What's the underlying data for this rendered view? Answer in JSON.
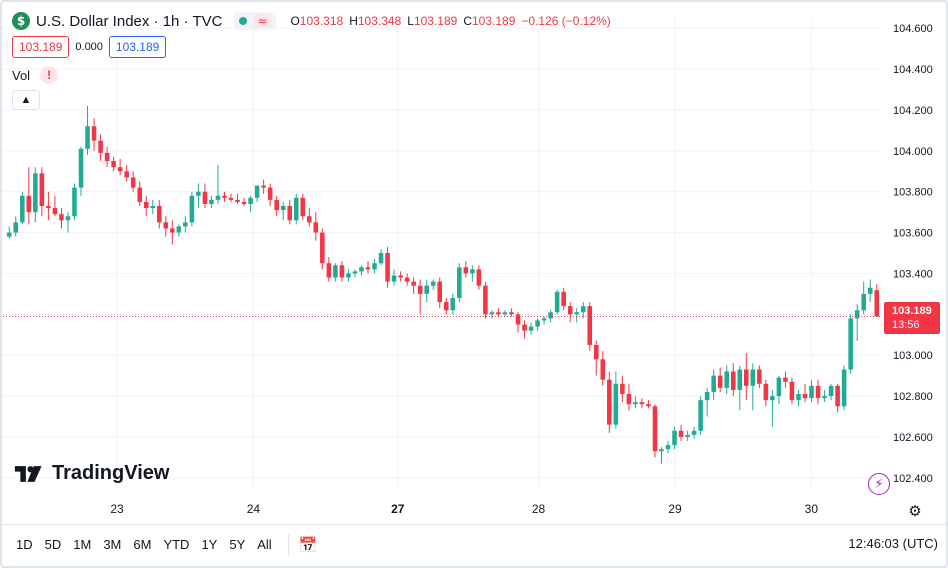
{
  "header": {
    "symbol_icon": "dollar-icon",
    "symbol_letter": "$",
    "title": "U.S. Dollar Index · 1h · TVC",
    "o_label": "O",
    "o_value": "103.318",
    "h_label": "H",
    "h_value": "103.348",
    "l_label": "L",
    "l_value": "103.189",
    "c_label": "C",
    "c_value": "103.189",
    "change": "−0.126 (−0.12%)"
  },
  "quote": {
    "bid": "103.189",
    "spread": "0.000",
    "ask": "103.189"
  },
  "volume": {
    "label": "Vol",
    "warning": "!"
  },
  "last_price": {
    "value": "103.189",
    "countdown": "13:56"
  },
  "brand": {
    "name": "TradingView"
  },
  "toolbar": {
    "ranges": [
      "1D",
      "5D",
      "1M",
      "3M",
      "6M",
      "YTD",
      "1Y",
      "5Y",
      "All"
    ],
    "clock": "12:46:03 (UTC)"
  },
  "colors": {
    "up": "#22ab94",
    "down": "#f23645",
    "grid": "#f0f3fa",
    "text": "#131722"
  },
  "chart_data": {
    "type": "candlestick",
    "x_ticks": [
      "23",
      "24",
      "27",
      "28",
      "29",
      "30"
    ],
    "y_ticks": [
      "102.400",
      "102.600",
      "102.800",
      "103.000",
      "103.200",
      "103.400",
      "103.600",
      "103.800",
      "104.000",
      "104.200",
      "104.400",
      "104.600"
    ],
    "ylim": [
      102.35,
      104.65
    ],
    "grid": true,
    "last_price_line": 103.189,
    "candles": [
      {
        "o": 103.58,
        "h": 103.63,
        "l": 103.57,
        "c": 103.6
      },
      {
        "o": 103.6,
        "h": 103.68,
        "l": 103.58,
        "c": 103.65
      },
      {
        "o": 103.65,
        "h": 103.8,
        "l": 103.64,
        "c": 103.78
      },
      {
        "o": 103.78,
        "h": 103.92,
        "l": 103.64,
        "c": 103.7
      },
      {
        "o": 103.7,
        "h": 103.92,
        "l": 103.65,
        "c": 103.89
      },
      {
        "o": 103.89,
        "h": 103.92,
        "l": 103.68,
        "c": 103.73
      },
      {
        "o": 103.73,
        "h": 103.8,
        "l": 103.66,
        "c": 103.72
      },
      {
        "o": 103.72,
        "h": 103.78,
        "l": 103.68,
        "c": 103.69
      },
      {
        "o": 103.69,
        "h": 103.72,
        "l": 103.62,
        "c": 103.66
      },
      {
        "o": 103.66,
        "h": 103.7,
        "l": 103.6,
        "c": 103.68
      },
      {
        "o": 103.68,
        "h": 103.84,
        "l": 103.66,
        "c": 103.82
      },
      {
        "o": 103.82,
        "h": 104.02,
        "l": 103.78,
        "c": 104.01
      },
      {
        "o": 104.01,
        "h": 104.22,
        "l": 103.98,
        "c": 104.12
      },
      {
        "o": 104.12,
        "h": 104.16,
        "l": 104.0,
        "c": 104.05
      },
      {
        "o": 104.05,
        "h": 104.08,
        "l": 103.95,
        "c": 103.99
      },
      {
        "o": 103.99,
        "h": 104.02,
        "l": 103.92,
        "c": 103.95
      },
      {
        "o": 103.95,
        "h": 103.97,
        "l": 103.9,
        "c": 103.92
      },
      {
        "o": 103.92,
        "h": 103.96,
        "l": 103.88,
        "c": 103.9
      },
      {
        "o": 103.9,
        "h": 103.93,
        "l": 103.85,
        "c": 103.87
      },
      {
        "o": 103.87,
        "h": 103.9,
        "l": 103.8,
        "c": 103.82
      },
      {
        "o": 103.82,
        "h": 103.85,
        "l": 103.73,
        "c": 103.75
      },
      {
        "o": 103.75,
        "h": 103.78,
        "l": 103.68,
        "c": 103.72
      },
      {
        "o": 103.72,
        "h": 103.76,
        "l": 103.69,
        "c": 103.73
      },
      {
        "o": 103.73,
        "h": 103.76,
        "l": 103.62,
        "c": 103.65
      },
      {
        "o": 103.65,
        "h": 103.68,
        "l": 103.58,
        "c": 103.62
      },
      {
        "o": 103.62,
        "h": 103.66,
        "l": 103.54,
        "c": 103.6
      },
      {
        "o": 103.6,
        "h": 103.64,
        "l": 103.58,
        "c": 103.63
      },
      {
        "o": 103.63,
        "h": 103.68,
        "l": 103.6,
        "c": 103.65
      },
      {
        "o": 103.65,
        "h": 103.8,
        "l": 103.63,
        "c": 103.78
      },
      {
        "o": 103.78,
        "h": 103.84,
        "l": 103.72,
        "c": 103.8
      },
      {
        "o": 103.8,
        "h": 103.84,
        "l": 103.72,
        "c": 103.74
      },
      {
        "o": 103.74,
        "h": 103.78,
        "l": 103.72,
        "c": 103.76
      },
      {
        "o": 103.76,
        "h": 103.93,
        "l": 103.74,
        "c": 103.78
      },
      {
        "o": 103.78,
        "h": 103.8,
        "l": 103.75,
        "c": 103.77
      },
      {
        "o": 103.77,
        "h": 103.79,
        "l": 103.75,
        "c": 103.76
      },
      {
        "o": 103.76,
        "h": 103.79,
        "l": 103.74,
        "c": 103.75
      },
      {
        "o": 103.75,
        "h": 103.77,
        "l": 103.73,
        "c": 103.74
      },
      {
        "o": 103.74,
        "h": 103.78,
        "l": 103.7,
        "c": 103.77
      },
      {
        "o": 103.77,
        "h": 103.82,
        "l": 103.75,
        "c": 103.83
      },
      {
        "o": 103.83,
        "h": 103.86,
        "l": 103.79,
        "c": 103.82
      },
      {
        "o": 103.82,
        "h": 103.84,
        "l": 103.73,
        "c": 103.76
      },
      {
        "o": 103.76,
        "h": 103.78,
        "l": 103.68,
        "c": 103.71
      },
      {
        "o": 103.71,
        "h": 103.75,
        "l": 103.66,
        "c": 103.73
      },
      {
        "o": 103.73,
        "h": 103.76,
        "l": 103.64,
        "c": 103.66
      },
      {
        "o": 103.66,
        "h": 103.79,
        "l": 103.64,
        "c": 103.77
      },
      {
        "o": 103.77,
        "h": 103.79,
        "l": 103.66,
        "c": 103.68
      },
      {
        "o": 103.68,
        "h": 103.72,
        "l": 103.63,
        "c": 103.65
      },
      {
        "o": 103.65,
        "h": 103.7,
        "l": 103.56,
        "c": 103.6
      },
      {
        "o": 103.6,
        "h": 103.62,
        "l": 103.42,
        "c": 103.45
      },
      {
        "o": 103.45,
        "h": 103.48,
        "l": 103.36,
        "c": 103.38
      },
      {
        "o": 103.38,
        "h": 103.45,
        "l": 103.36,
        "c": 103.44
      },
      {
        "o": 103.44,
        "h": 103.46,
        "l": 103.36,
        "c": 103.38
      },
      {
        "o": 103.38,
        "h": 103.42,
        "l": 103.36,
        "c": 103.4
      },
      {
        "o": 103.4,
        "h": 103.42,
        "l": 103.38,
        "c": 103.41
      },
      {
        "o": 103.41,
        "h": 103.44,
        "l": 103.39,
        "c": 103.43
      },
      {
        "o": 103.43,
        "h": 103.46,
        "l": 103.4,
        "c": 103.42
      },
      {
        "o": 103.42,
        "h": 103.47,
        "l": 103.4,
        "c": 103.45
      },
      {
        "o": 103.45,
        "h": 103.52,
        "l": 103.44,
        "c": 103.5
      },
      {
        "o": 103.5,
        "h": 103.53,
        "l": 103.33,
        "c": 103.36
      },
      {
        "o": 103.36,
        "h": 103.42,
        "l": 103.34,
        "c": 103.39
      },
      {
        "o": 103.39,
        "h": 103.41,
        "l": 103.36,
        "c": 103.38
      },
      {
        "o": 103.38,
        "h": 103.4,
        "l": 103.34,
        "c": 103.36
      },
      {
        "o": 103.36,
        "h": 103.38,
        "l": 103.3,
        "c": 103.34
      },
      {
        "o": 103.34,
        "h": 103.37,
        "l": 103.2,
        "c": 103.3
      },
      {
        "o": 103.3,
        "h": 103.37,
        "l": 103.26,
        "c": 103.34
      },
      {
        "o": 103.34,
        "h": 103.37,
        "l": 103.32,
        "c": 103.36
      },
      {
        "o": 103.36,
        "h": 103.38,
        "l": 103.23,
        "c": 103.26
      },
      {
        "o": 103.26,
        "h": 103.28,
        "l": 103.2,
        "c": 103.22
      },
      {
        "o": 103.22,
        "h": 103.3,
        "l": 103.2,
        "c": 103.28
      },
      {
        "o": 103.28,
        "h": 103.45,
        "l": 103.26,
        "c": 103.43
      },
      {
        "o": 103.43,
        "h": 103.46,
        "l": 103.38,
        "c": 103.4
      },
      {
        "o": 103.4,
        "h": 103.44,
        "l": 103.36,
        "c": 103.42
      },
      {
        "o": 103.42,
        "h": 103.44,
        "l": 103.32,
        "c": 103.34
      },
      {
        "o": 103.34,
        "h": 103.36,
        "l": 103.18,
        "c": 103.2
      },
      {
        "o": 103.2,
        "h": 103.22,
        "l": 103.18,
        "c": 103.21
      },
      {
        "o": 103.21,
        "h": 103.23,
        "l": 103.19,
        "c": 103.2
      },
      {
        "o": 103.2,
        "h": 103.22,
        "l": 103.19,
        "c": 103.21
      },
      {
        "o": 103.21,
        "h": 103.23,
        "l": 103.19,
        "c": 103.2
      },
      {
        "o": 103.2,
        "h": 103.21,
        "l": 103.11,
        "c": 103.15
      },
      {
        "o": 103.15,
        "h": 103.17,
        "l": 103.08,
        "c": 103.12
      },
      {
        "o": 103.12,
        "h": 103.16,
        "l": 103.1,
        "c": 103.14
      },
      {
        "o": 103.14,
        "h": 103.18,
        "l": 103.12,
        "c": 103.17
      },
      {
        "o": 103.17,
        "h": 103.19,
        "l": 103.15,
        "c": 103.18
      },
      {
        "o": 103.18,
        "h": 103.22,
        "l": 103.16,
        "c": 103.21
      },
      {
        "o": 103.21,
        "h": 103.32,
        "l": 103.2,
        "c": 103.31
      },
      {
        "o": 103.31,
        "h": 103.33,
        "l": 103.22,
        "c": 103.24
      },
      {
        "o": 103.24,
        "h": 103.26,
        "l": 103.16,
        "c": 103.2
      },
      {
        "o": 103.2,
        "h": 103.23,
        "l": 103.16,
        "c": 103.21
      },
      {
        "o": 103.21,
        "h": 103.26,
        "l": 103.18,
        "c": 103.24
      },
      {
        "o": 103.24,
        "h": 103.26,
        "l": 103.02,
        "c": 103.05
      },
      {
        "o": 103.05,
        "h": 103.07,
        "l": 102.9,
        "c": 102.98
      },
      {
        "o": 102.98,
        "h": 103.02,
        "l": 102.85,
        "c": 102.88
      },
      {
        "o": 102.88,
        "h": 102.92,
        "l": 102.62,
        "c": 102.66
      },
      {
        "o": 102.66,
        "h": 102.92,
        "l": 102.64,
        "c": 102.86
      },
      {
        "o": 102.86,
        "h": 102.9,
        "l": 102.77,
        "c": 102.81
      },
      {
        "o": 102.81,
        "h": 102.86,
        "l": 102.73,
        "c": 102.76
      },
      {
        "o": 102.76,
        "h": 102.8,
        "l": 102.74,
        "c": 102.77
      },
      {
        "o": 102.77,
        "h": 102.79,
        "l": 102.74,
        "c": 102.76
      },
      {
        "o": 102.76,
        "h": 102.78,
        "l": 102.74,
        "c": 102.75
      },
      {
        "o": 102.75,
        "h": 102.76,
        "l": 102.5,
        "c": 102.53
      },
      {
        "o": 102.53,
        "h": 102.55,
        "l": 102.47,
        "c": 102.54
      },
      {
        "o": 102.54,
        "h": 102.58,
        "l": 102.52,
        "c": 102.56
      },
      {
        "o": 102.56,
        "h": 102.65,
        "l": 102.54,
        "c": 102.63
      },
      {
        "o": 102.63,
        "h": 102.66,
        "l": 102.58,
        "c": 102.6
      },
      {
        "o": 102.6,
        "h": 102.63,
        "l": 102.58,
        "c": 102.61
      },
      {
        "o": 102.61,
        "h": 102.65,
        "l": 102.59,
        "c": 102.63
      },
      {
        "o": 102.63,
        "h": 102.8,
        "l": 102.61,
        "c": 102.78
      },
      {
        "o": 102.78,
        "h": 102.84,
        "l": 102.7,
        "c": 102.82
      },
      {
        "o": 102.82,
        "h": 102.93,
        "l": 102.78,
        "c": 102.9
      },
      {
        "o": 102.9,
        "h": 102.94,
        "l": 102.82,
        "c": 102.84
      },
      {
        "o": 102.84,
        "h": 102.95,
        "l": 102.81,
        "c": 102.92
      },
      {
        "o": 102.92,
        "h": 102.96,
        "l": 102.8,
        "c": 102.83
      },
      {
        "o": 102.83,
        "h": 102.95,
        "l": 102.73,
        "c": 102.93
      },
      {
        "o": 102.93,
        "h": 103.01,
        "l": 102.78,
        "c": 102.85
      },
      {
        "o": 102.85,
        "h": 102.96,
        "l": 102.73,
        "c": 102.93
      },
      {
        "o": 102.93,
        "h": 102.95,
        "l": 102.84,
        "c": 102.86
      },
      {
        "o": 102.86,
        "h": 102.88,
        "l": 102.75,
        "c": 102.78
      },
      {
        "o": 102.78,
        "h": 102.83,
        "l": 102.65,
        "c": 102.8
      },
      {
        "o": 102.8,
        "h": 102.9,
        "l": 102.76,
        "c": 102.89
      },
      {
        "o": 102.89,
        "h": 102.92,
        "l": 102.84,
        "c": 102.87
      },
      {
        "o": 102.87,
        "h": 102.89,
        "l": 102.76,
        "c": 102.78
      },
      {
        "o": 102.78,
        "h": 102.83,
        "l": 102.75,
        "c": 102.81
      },
      {
        "o": 102.81,
        "h": 102.86,
        "l": 102.77,
        "c": 102.79
      },
      {
        "o": 102.79,
        "h": 102.88,
        "l": 102.77,
        "c": 102.85
      },
      {
        "o": 102.85,
        "h": 102.88,
        "l": 102.76,
        "c": 102.79
      },
      {
        "o": 102.79,
        "h": 102.83,
        "l": 102.77,
        "c": 102.8
      },
      {
        "o": 102.8,
        "h": 102.86,
        "l": 102.78,
        "c": 102.85
      },
      {
        "o": 102.85,
        "h": 102.86,
        "l": 102.72,
        "c": 102.75
      },
      {
        "o": 102.75,
        "h": 102.95,
        "l": 102.73,
        "c": 102.93
      },
      {
        "o": 102.93,
        "h": 103.2,
        "l": 102.91,
        "c": 103.18
      },
      {
        "o": 103.18,
        "h": 103.25,
        "l": 103.07,
        "c": 103.22
      },
      {
        "o": 103.22,
        "h": 103.36,
        "l": 103.2,
        "c": 103.3
      },
      {
        "o": 103.3,
        "h": 103.37,
        "l": 103.26,
        "c": 103.33
      },
      {
        "o": 103.318,
        "h": 103.348,
        "l": 103.189,
        "c": 103.189
      }
    ]
  }
}
